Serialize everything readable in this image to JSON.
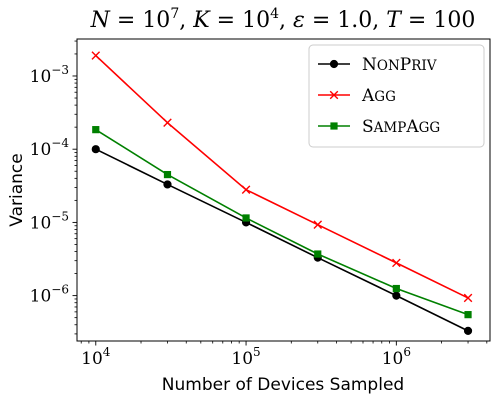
{
  "chart_data": {
    "type": "line",
    "title": "N = 10^7, K = 10^4, ε = 1.0, T = 100",
    "title_parts": {
      "n": "N",
      "n_base": "10",
      "n_exp": "7",
      "k": "K",
      "k_base": "10",
      "k_exp": "4",
      "eps": "ε",
      "eps_val": "1.0",
      "t": "T",
      "t_val": "100"
    },
    "xlabel": "Number of Devices Sampled",
    "ylabel": "Variance",
    "x_scale": "log",
    "y_scale": "log",
    "xlim": [
      7500,
      4200000
    ],
    "ylim": [
      2.4e-07,
      0.0032
    ],
    "x_ticks": [
      {
        "value": 10000,
        "base": "10",
        "exp": "4"
      },
      {
        "value": 100000,
        "base": "10",
        "exp": "5"
      },
      {
        "value": 1000000,
        "base": "10",
        "exp": "6"
      }
    ],
    "y_ticks": [
      {
        "value": 1e-06,
        "base": "10",
        "exp": "−6"
      },
      {
        "value": 1e-05,
        "base": "10",
        "exp": "−5"
      },
      {
        "value": 0.0001,
        "base": "10",
        "exp": "−4"
      },
      {
        "value": 0.001,
        "base": "10",
        "exp": "−3"
      }
    ],
    "x": [
      10000,
      30000,
      100000,
      300000,
      1000000,
      3000000
    ],
    "series": [
      {
        "name": "NonPriv",
        "name_first": "N",
        "name_rest": "ON",
        "name_first2": "P",
        "name_rest2": "RIV",
        "color": "#000000",
        "marker": "circle",
        "values": [
          0.0001,
          3.3e-05,
          1e-05,
          3.3e-06,
          1e-06,
          3.3e-07
        ]
      },
      {
        "name": "Agg",
        "name_first": "A",
        "name_rest": "GG",
        "name_first2": "",
        "name_rest2": "",
        "color": "#ff0000",
        "marker": "x",
        "values": [
          0.0019,
          0.00023,
          2.8e-05,
          9.3e-06,
          2.8e-06,
          9.3e-07
        ]
      },
      {
        "name": "SampAgg",
        "name_first": "S",
        "name_rest": "AMP",
        "name_first2": "A",
        "name_rest2": "GG",
        "color": "#008000",
        "marker": "square",
        "values": [
          0.000185,
          4.5e-05,
          1.15e-05,
          3.7e-06,
          1.25e-06,
          5.5e-07
        ]
      }
    ],
    "legend_position": "top-right",
    "grid": false
  }
}
